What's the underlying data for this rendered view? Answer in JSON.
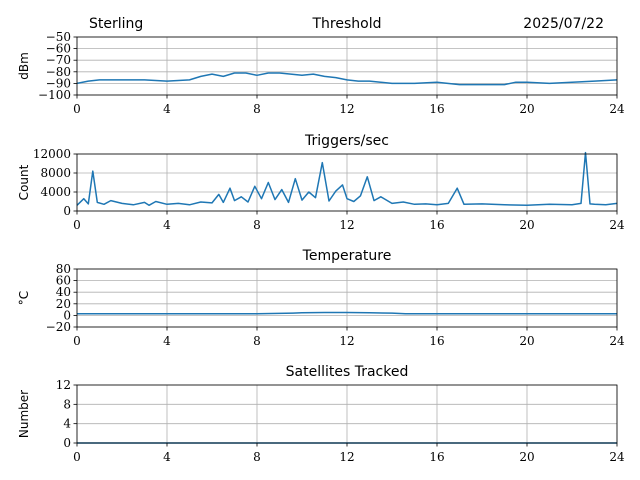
{
  "header": {
    "station": "Sterling",
    "date": "2025/07/22"
  },
  "series_color": "#1f77b4",
  "chart_data": [
    {
      "type": "line",
      "title": "Threshold",
      "xlabel": "",
      "ylabel": "dBm",
      "xlim": [
        0,
        24
      ],
      "ylim": [
        -100,
        -50
      ],
      "xticks": [
        0,
        4,
        8,
        12,
        16,
        20,
        24
      ],
      "yticks": [
        -100,
        -90,
        -80,
        -70,
        -60,
        -50
      ],
      "ytick_labels": [
        "−100",
        "−90",
        "−80",
        "−70",
        "−60",
        "−50"
      ],
      "grid": true,
      "x": [
        0,
        0.5,
        1,
        2,
        3,
        4,
        5,
        5.5,
        6,
        6.5,
        7,
        7.5,
        8,
        8.5,
        9,
        9.5,
        10,
        10.5,
        11,
        11.5,
        12,
        12.5,
        13,
        14,
        15,
        16,
        17,
        18,
        19,
        19.5,
        20,
        21,
        22,
        23,
        24
      ],
      "y": [
        -90,
        -88,
        -87,
        -87,
        -87,
        -88,
        -87,
        -84,
        -82,
        -84,
        -81,
        -81,
        -83,
        -81,
        -81,
        -82,
        -83,
        -82,
        -84,
        -85,
        -87,
        -88,
        -88,
        -90,
        -90,
        -89,
        -91,
        -91,
        -91,
        -89,
        -89,
        -90,
        -89,
        -88,
        -87
      ]
    },
    {
      "type": "line",
      "title": "Triggers/sec",
      "xlabel": "",
      "ylabel": "Count",
      "xlim": [
        0,
        24
      ],
      "ylim": [
        0,
        12000
      ],
      "xticks": [
        0,
        4,
        8,
        12,
        16,
        20,
        24
      ],
      "yticks": [
        0,
        4000,
        8000,
        12000
      ],
      "ytick_labels": [
        "0",
        "4000",
        "8000",
        "12000"
      ],
      "grid": true,
      "x": [
        0,
        0.3,
        0.5,
        0.7,
        0.9,
        1.2,
        1.5,
        2,
        2.5,
        3,
        3.2,
        3.5,
        4,
        4.5,
        5,
        5.5,
        6,
        6.3,
        6.5,
        6.8,
        7,
        7.3,
        7.6,
        7.9,
        8.2,
        8.5,
        8.8,
        9.1,
        9.4,
        9.7,
        10,
        10.3,
        10.6,
        10.9,
        11.2,
        11.5,
        11.8,
        12,
        12.3,
        12.6,
        12.9,
        13.2,
        13.5,
        14,
        14.5,
        15,
        15.5,
        16,
        16.5,
        16.9,
        17.2,
        18,
        19,
        20,
        21,
        22,
        22.4,
        22.6,
        22.8,
        23,
        23.5,
        24
      ],
      "y": [
        1200,
        2600,
        1500,
        8400,
        1800,
        1400,
        2200,
        1600,
        1300,
        1800,
        1200,
        2000,
        1400,
        1600,
        1300,
        1900,
        1700,
        3500,
        1800,
        4800,
        2200,
        3000,
        1900,
        5200,
        2600,
        6000,
        2400,
        4500,
        1800,
        6800,
        2300,
        4000,
        2800,
        10200,
        2100,
        4200,
        5500,
        2600,
        2000,
        3200,
        7200,
        2200,
        3000,
        1600,
        1900,
        1400,
        1500,
        1300,
        1600,
        4800,
        1400,
        1500,
        1300,
        1200,
        1400,
        1300,
        1600,
        12300,
        1500,
        1400,
        1300,
        1600
      ]
    },
    {
      "type": "line",
      "title": "Temperature",
      "xlabel": "",
      "ylabel": "°C",
      "xlim": [
        0,
        24
      ],
      "ylim": [
        -20,
        80
      ],
      "xticks": [
        0,
        4,
        8,
        12,
        16,
        20,
        24
      ],
      "yticks": [
        -20,
        0,
        20,
        40,
        60,
        80
      ],
      "ytick_labels": [
        "−20",
        "0",
        "20",
        "40",
        "60",
        "80"
      ],
      "grid": true,
      "x": [
        0,
        4,
        8,
        9.6,
        10,
        11,
        12,
        13,
        14,
        14.6,
        16,
        20,
        24
      ],
      "y": [
        3,
        3,
        3,
        4,
        4.5,
        5,
        5,
        4.5,
        4,
        3,
        3,
        3,
        3
      ]
    },
    {
      "type": "line",
      "title": "Satellites Tracked",
      "xlabel": "",
      "ylabel": "Number",
      "xlim": [
        0,
        24
      ],
      "ylim": [
        0,
        12
      ],
      "xticks": [
        0,
        4,
        8,
        12,
        16,
        20,
        24
      ],
      "yticks": [
        0,
        4,
        8,
        12
      ],
      "ytick_labels": [
        "0",
        "4",
        "8",
        "12"
      ],
      "grid": true,
      "x": [
        0,
        24
      ],
      "y": [
        0,
        0
      ]
    }
  ]
}
